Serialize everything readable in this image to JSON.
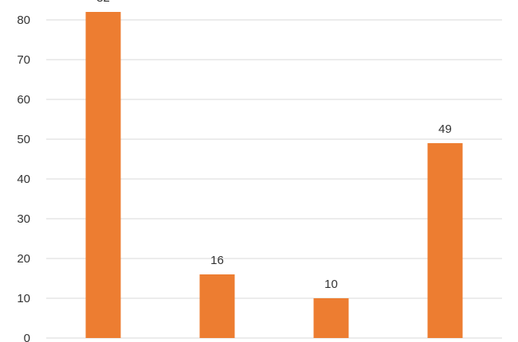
{
  "chart_data": {
    "type": "bar",
    "title": "",
    "xlabel": "",
    "ylabel": "",
    "categories": [
      "",
      "",
      "",
      ""
    ],
    "values": [
      82,
      16,
      10,
      49
    ],
    "ylim": [
      0,
      85
    ],
    "yticks": [
      0,
      10,
      20,
      30,
      40,
      50,
      60,
      70,
      80
    ],
    "grid": true,
    "legend": "none",
    "colors": {
      "bar": "#ed7d31",
      "gridline": "#d9d9d9",
      "text": "#333333"
    }
  }
}
